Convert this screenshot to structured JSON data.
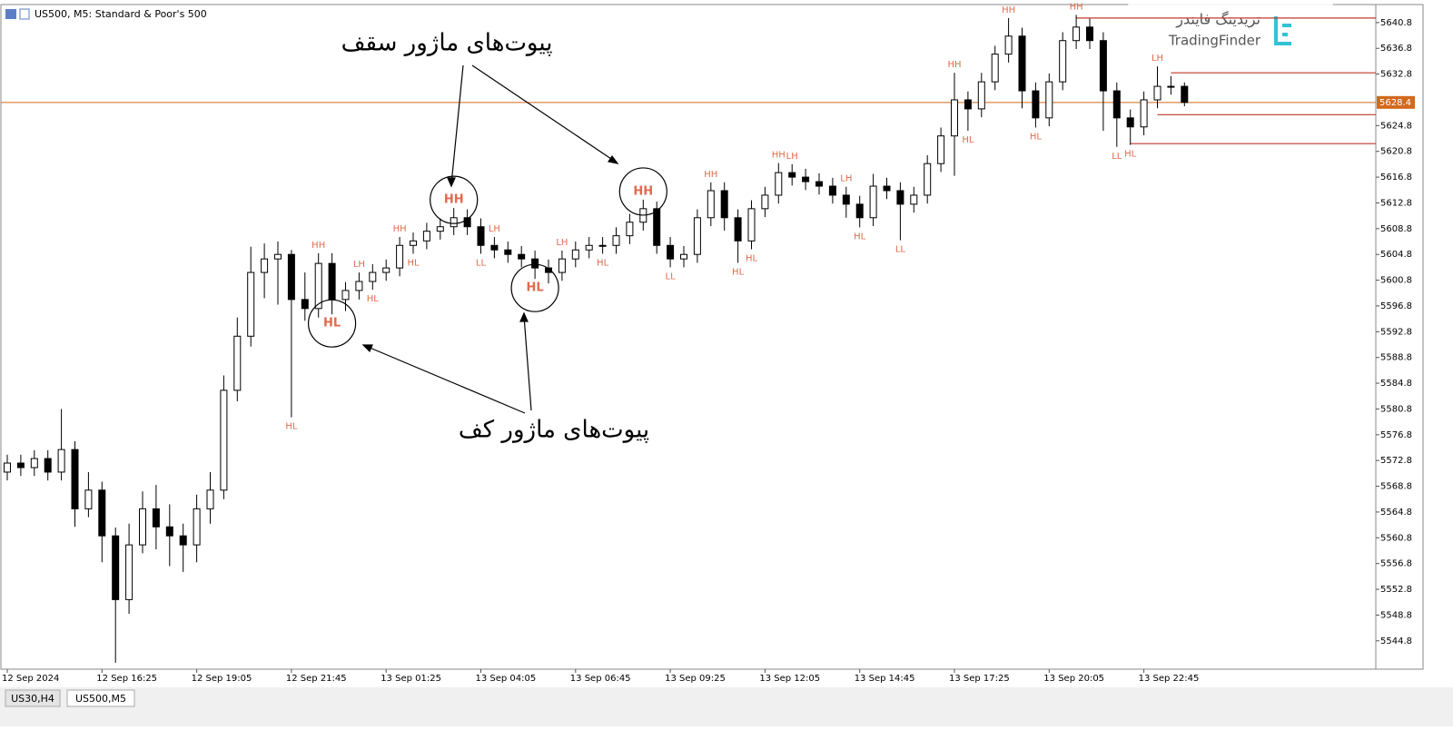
{
  "header": {
    "symbol": "US500, M5:  Standard & Poor's 500"
  },
  "tabs": [
    "US30,H4",
    "US500,M5"
  ],
  "logo": {
    "persian": "تریدینگ فایندر",
    "latin": "TradingFinder"
  },
  "chart_data": {
    "type": "candlestick",
    "open": [
      5571.0,
      5572.4,
      5571.7,
      5573.1,
      5571.0,
      5574.5,
      5565.3,
      5568.2,
      5561.1,
      5551.2,
      5559.7,
      5565.3,
      5562.5,
      5561.1,
      5559.7,
      5565.3,
      5568.2,
      5583.7,
      5592.1,
      5602.0,
      5604.1,
      5604.8,
      5597.8,
      5596.4,
      5603.4,
      5597.8,
      5599.2,
      5600.6,
      5602.0,
      5602.7,
      5606.2,
      5606.9,
      5608.4,
      5609.1,
      5610.5,
      5609.1,
      5606.2,
      5605.5,
      5604.8,
      5604.1,
      5602.7,
      5602.0,
      5604.1,
      5605.5,
      5606.2,
      5606.2,
      5607.7,
      5609.8,
      5611.9,
      5606.2,
      5604.1,
      5604.8,
      5610.5,
      5614.7,
      5610.5,
      5606.9,
      5611.9,
      5614.0,
      5617.5,
      5616.8,
      5616.1,
      5615.4,
      5614.0,
      5612.6,
      5610.5,
      5615.4,
      5614.7,
      5612.6,
      5614.0,
      5618.9,
      5623.2,
      5628.8,
      5627.4,
      5631.6,
      5635.9,
      5638.7,
      5630.2,
      5626.0,
      5631.6,
      5638.0,
      5640.1,
      5638.0,
      5630.2,
      5626.0,
      5624.6,
      5628.8,
      5630.9,
      5630.9
    ],
    "high": [
      5573.7,
      5573.7,
      5574.4,
      5574.4,
      5580.8,
      5575.8,
      5571.0,
      5569.5,
      5562.4,
      5563.0,
      5568.0,
      5569.0,
      5566.0,
      5563.0,
      5567.5,
      5571.0,
      5586.0,
      5595.0,
      5606.0,
      5606.5,
      5606.8,
      5605.5,
      5602.0,
      5605.0,
      5605.0,
      5600.5,
      5602.0,
      5603.3,
      5604.0,
      5607.5,
      5608.2,
      5609.7,
      5610.4,
      5612.0,
      5611.8,
      5610.4,
      5607.5,
      5606.8,
      5606.1,
      5605.4,
      5604.0,
      5605.4,
      5606.8,
      5607.5,
      5607.5,
      5609.0,
      5611.1,
      5613.3,
      5613.0,
      5607.5,
      5606.1,
      5611.8,
      5616.0,
      5616.0,
      5611.8,
      5613.2,
      5615.3,
      5619.0,
      5618.8,
      5618.1,
      5617.4,
      5616.7,
      5615.3,
      5613.9,
      5617.3,
      5616.7,
      5616.0,
      5615.3,
      5620.2,
      5624.5,
      5633.0,
      5630.1,
      5633.0,
      5637.2,
      5641.5,
      5640.0,
      5631.5,
      5632.9,
      5639.3,
      5642.0,
      5641.4,
      5639.3,
      5631.5,
      5627.3,
      5630.1,
      5634.0,
      5632.5,
      5631.5
    ],
    "low": [
      5569.7,
      5570.4,
      5570.4,
      5569.7,
      5569.7,
      5562.5,
      5564.0,
      5557.0,
      5541.4,
      5549.0,
      5558.4,
      5559.0,
      5556.4,
      5555.5,
      5557.0,
      5563.0,
      5566.8,
      5582.0,
      5590.5,
      5598.0,
      5597.0,
      5579.5,
      5594.5,
      5595.0,
      5595.5,
      5596.0,
      5597.8,
      5599.3,
      5600.7,
      5601.4,
      5604.9,
      5605.6,
      5607.1,
      5607.8,
      5607.8,
      5604.9,
      5604.2,
      5603.5,
      5602.8,
      5601.0,
      5600.3,
      5600.7,
      5602.8,
      5604.2,
      5604.9,
      5604.9,
      5606.4,
      5608.5,
      5604.9,
      5602.8,
      5602.8,
      5603.5,
      5609.2,
      5608.5,
      5603.5,
      5605.6,
      5610.6,
      5612.7,
      5615.5,
      5614.8,
      5614.1,
      5612.7,
      5610.5,
      5609.0,
      5609.2,
      5613.4,
      5607.0,
      5611.3,
      5612.7,
      5617.6,
      5617.0,
      5624.0,
      5626.1,
      5630.3,
      5634.6,
      5627.5,
      5624.5,
      5624.7,
      5630.3,
      5636.7,
      5636.7,
      5624.0,
      5621.5,
      5621.8,
      5623.3,
      5627.5,
      5629.6,
      5627.8
    ],
    "close": [
      5572.4,
      5571.7,
      5573.1,
      5571.0,
      5574.5,
      5565.3,
      5568.2,
      5561.1,
      5551.2,
      5559.7,
      5565.3,
      5562.5,
      5561.1,
      5559.7,
      5565.3,
      5568.2,
      5583.7,
      5592.1,
      5602.0,
      5604.1,
      5604.8,
      5597.8,
      5596.4,
      5603.4,
      5597.8,
      5599.2,
      5600.6,
      5602.0,
      5602.7,
      5606.2,
      5606.9,
      5608.4,
      5609.1,
      5610.5,
      5609.1,
      5606.2,
      5605.5,
      5604.8,
      5604.1,
      5602.7,
      5602.0,
      5604.1,
      5605.5,
      5606.2,
      5606.2,
      5607.7,
      5609.8,
      5611.9,
      5606.2,
      5604.1,
      5604.8,
      5610.5,
      5614.7,
      5610.5,
      5606.9,
      5611.9,
      5614.0,
      5617.5,
      5616.8,
      5616.1,
      5615.4,
      5614.0,
      5612.6,
      5610.5,
      5615.4,
      5614.7,
      5612.6,
      5614.0,
      5618.9,
      5623.2,
      5628.8,
      5627.4,
      5631.6,
      5635.9,
      5638.7,
      5630.2,
      5626.0,
      5631.6,
      5638.0,
      5640.1,
      5638.0,
      5630.2,
      5626.0,
      5624.6,
      5628.8,
      5630.9,
      5630.9,
      5628.4
    ],
    "bull_color": "#ffffff",
    "bear_color": "#000000",
    "outline_color": "#000000",
    "ylim": [
      5540.4,
      5643.6
    ],
    "yticks": [
      5640.8,
      5636.8,
      5632.8,
      5624.8,
      5620.8,
      5616.8,
      5612.8,
      5608.8,
      5604.8,
      5600.8,
      5596.8,
      5592.8,
      5588.8,
      5584.8,
      5580.8,
      5576.8,
      5572.8,
      5568.8,
      5564.8,
      5560.8,
      5556.8,
      5552.8,
      5548.8,
      5544.8
    ],
    "xticks": [
      {
        "value": 0,
        "label": "12 Sep 2024"
      },
      {
        "value": 7,
        "label": "12 Sep 16:25"
      },
      {
        "value": 14,
        "label": "12 Sep 19:05"
      },
      {
        "value": 21,
        "label": "12 Sep 21:45"
      },
      {
        "value": 28,
        "label": "13 Sep 01:25"
      },
      {
        "value": 35,
        "label": "13 Sep 04:05"
      },
      {
        "value": 42,
        "label": "13 Sep 06:45"
      },
      {
        "value": 49,
        "label": "13 Sep 09:25"
      },
      {
        "value": 56,
        "label": "13 Sep 12:05"
      },
      {
        "value": 63,
        "label": "13 Sep 14:45"
      },
      {
        "value": 70,
        "label": "13 Sep 17:25"
      },
      {
        "value": 77,
        "label": "13 Sep 20:05"
      },
      {
        "value": 84,
        "label": "13 Sep 22:45"
      }
    ],
    "current_price": 5628.4,
    "current_color": "#d2691e",
    "levels": [
      {
        "value": 5641.5,
        "x": 79
      },
      {
        "value": 5633.0,
        "x": 86
      },
      {
        "value": 5626.5,
        "x": 85
      },
      {
        "value": 5622.0,
        "x": 83
      }
    ],
    "level_color": "#c0392b",
    "pivot_color": "#e06a4e",
    "pivots": [
      {
        "label": "HH",
        "x": 23
      },
      {
        "label": "HL",
        "x": 21
      },
      {
        "label": "HL",
        "x": 24,
        "circled": true
      },
      {
        "label": "LH",
        "x": 26
      },
      {
        "label": "HL",
        "x": 27
      },
      {
        "label": "HH",
        "x": 29
      },
      {
        "label": "HL",
        "x": 30
      },
      {
        "label": "HH",
        "x": 33,
        "circled": true
      },
      {
        "label": "LL",
        "x": 35
      },
      {
        "label": "LH",
        "x": 36
      },
      {
        "label": "HL",
        "x": 39,
        "circled": true
      },
      {
        "label": "LH",
        "x": 41
      },
      {
        "label": "HL",
        "x": 44
      },
      {
        "label": "HH",
        "x": 47,
        "circled": true
      },
      {
        "label": "LL",
        "x": 49
      },
      {
        "label": "HH",
        "x": 52
      },
      {
        "label": "HL",
        "x": 54
      },
      {
        "label": "HL",
        "x": 55
      },
      {
        "label": "HH",
        "x": 57
      },
      {
        "label": "LH",
        "x": 58
      },
      {
        "label": "LH",
        "x": 62
      },
      {
        "label": "HL",
        "x": 63
      },
      {
        "label": "LL",
        "x": 66
      },
      {
        "label": "HH",
        "x": 70
      },
      {
        "label": "HL",
        "x": 71
      },
      {
        "label": "HH",
        "x": 74
      },
      {
        "label": "HL",
        "x": 76
      },
      {
        "label": "HH",
        "x": 79
      },
      {
        "label": "LL",
        "x": 82
      },
      {
        "label": "HL",
        "x": 83
      },
      {
        "label": "LH",
        "x": 85
      }
    ],
    "annotations": {
      "top": "پیوت‌های ماژور سقف",
      "bottom": "پیوت‌های ماژور کف"
    }
  }
}
